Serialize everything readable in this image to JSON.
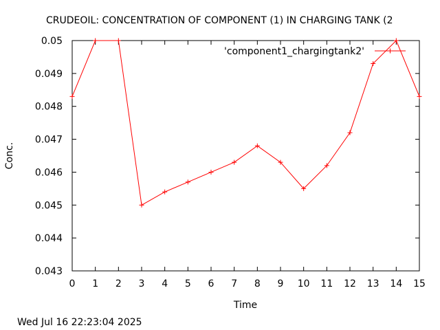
{
  "chart_data": {
    "type": "line",
    "title": "CRUDEOIL:   CONCENTRATION OF COMPONENT (1) IN CHARGING TANK (2",
    "xlabel": "Time",
    "ylabel": "Conc.",
    "xlim": [
      0,
      15
    ],
    "ylim": [
      0.043,
      0.05
    ],
    "xticks": [
      "0",
      "1",
      "2",
      "3",
      "4",
      "5",
      "6",
      "7",
      "8",
      "9",
      "10",
      "11",
      "12",
      "13",
      "14",
      "15"
    ],
    "yticks": [
      "0.043",
      "0.044",
      "0.045",
      "0.046",
      "0.047",
      "0.048",
      "0.049",
      "0.05"
    ],
    "grid": false,
    "legend_position": "top-right",
    "series": [
      {
        "name": "'component1_chargingtank2'",
        "color": "#ff0000",
        "marker": "plus",
        "x": [
          0,
          1,
          2,
          3,
          4,
          5,
          6,
          7,
          8,
          9,
          10,
          11,
          12,
          13,
          14,
          15
        ],
        "y": [
          0.0483,
          0.05,
          0.05,
          0.045,
          0.0454,
          0.0457,
          0.046,
          0.0463,
          0.0468,
          0.0463,
          0.0455,
          0.0462,
          0.0472,
          0.0493,
          0.05,
          0.0483
        ]
      }
    ]
  },
  "footer": {
    "timestamp": "Wed Jul 16 22:23:04 2025"
  }
}
